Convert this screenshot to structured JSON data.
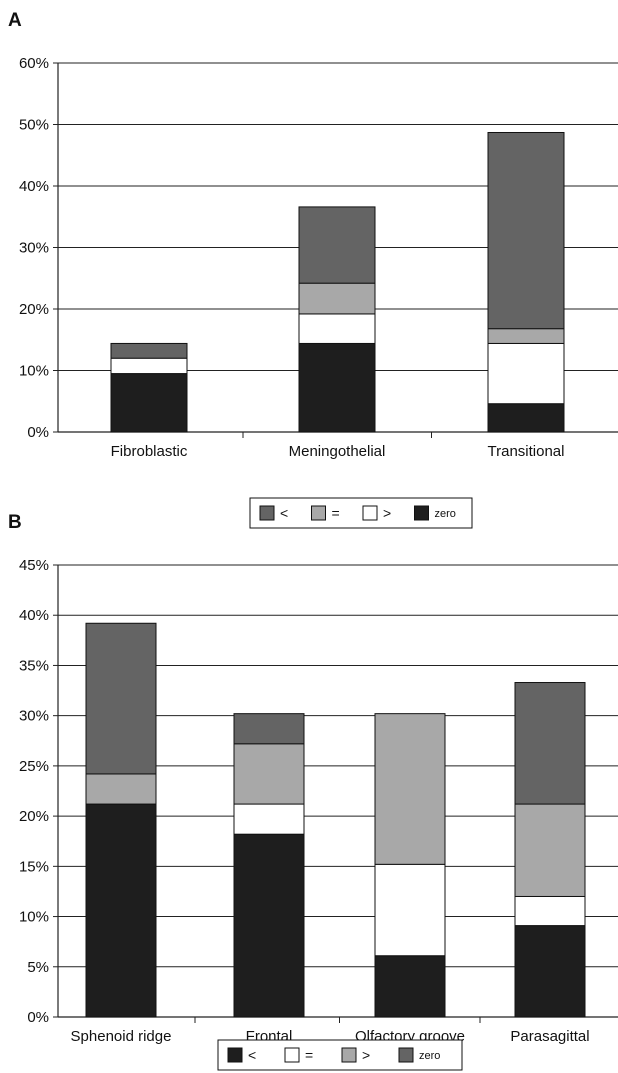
{
  "chart_data": [
    {
      "panel": "A",
      "type": "bar",
      "stacked": true,
      "categories": [
        "Fibroblastic",
        "Meningothelial",
        "Transitional"
      ],
      "ylim": [
        0,
        60
      ],
      "yticks": [
        0,
        10,
        20,
        30,
        40,
        50,
        60
      ],
      "ytick_suffix": "%",
      "grid": true,
      "legend_position": "bottom",
      "series": [
        {
          "name": "zero",
          "color": "#1e1e1e",
          "values": [
            9.5,
            14.4,
            4.6
          ]
        },
        {
          "name": ">",
          "color": "#ffffff",
          "values": [
            2.5,
            4.8,
            9.8
          ]
        },
        {
          "name": "=",
          "color": "#a8a8a8",
          "values": [
            0,
            5.0,
            2.4
          ]
        },
        {
          "name": "<",
          "color": "#646464",
          "values": [
            2.4,
            12.4,
            31.9
          ]
        }
      ],
      "legend_order": [
        "<",
        "=",
        ">",
        "zero"
      ]
    },
    {
      "panel": "B",
      "type": "bar",
      "stacked": true,
      "categories": [
        "Sphenoid ridge",
        "Frontal",
        "Olfactory groove",
        "Parasagittal"
      ],
      "ylim": [
        0,
        45
      ],
      "yticks": [
        0,
        5,
        10,
        15,
        20,
        25,
        30,
        35,
        40,
        45
      ],
      "ytick_suffix": "%",
      "grid": true,
      "legend_position": "bottom",
      "series": [
        {
          "name": "<",
          "color": "#1e1e1e",
          "values": [
            21.2,
            18.2,
            6.1,
            9.1
          ]
        },
        {
          "name": "=",
          "color": "#ffffff",
          "values": [
            0,
            3.0,
            9.1,
            2.9
          ]
        },
        {
          "name": ">",
          "color": "#a8a8a8",
          "values": [
            3.0,
            6.0,
            15.0,
            9.2
          ]
        },
        {
          "name": "zero",
          "color": "#646464",
          "values": [
            15.0,
            3.0,
            0,
            12.1
          ]
        }
      ],
      "legend_order": [
        "<",
        "=",
        ">",
        "zero"
      ]
    }
  ]
}
